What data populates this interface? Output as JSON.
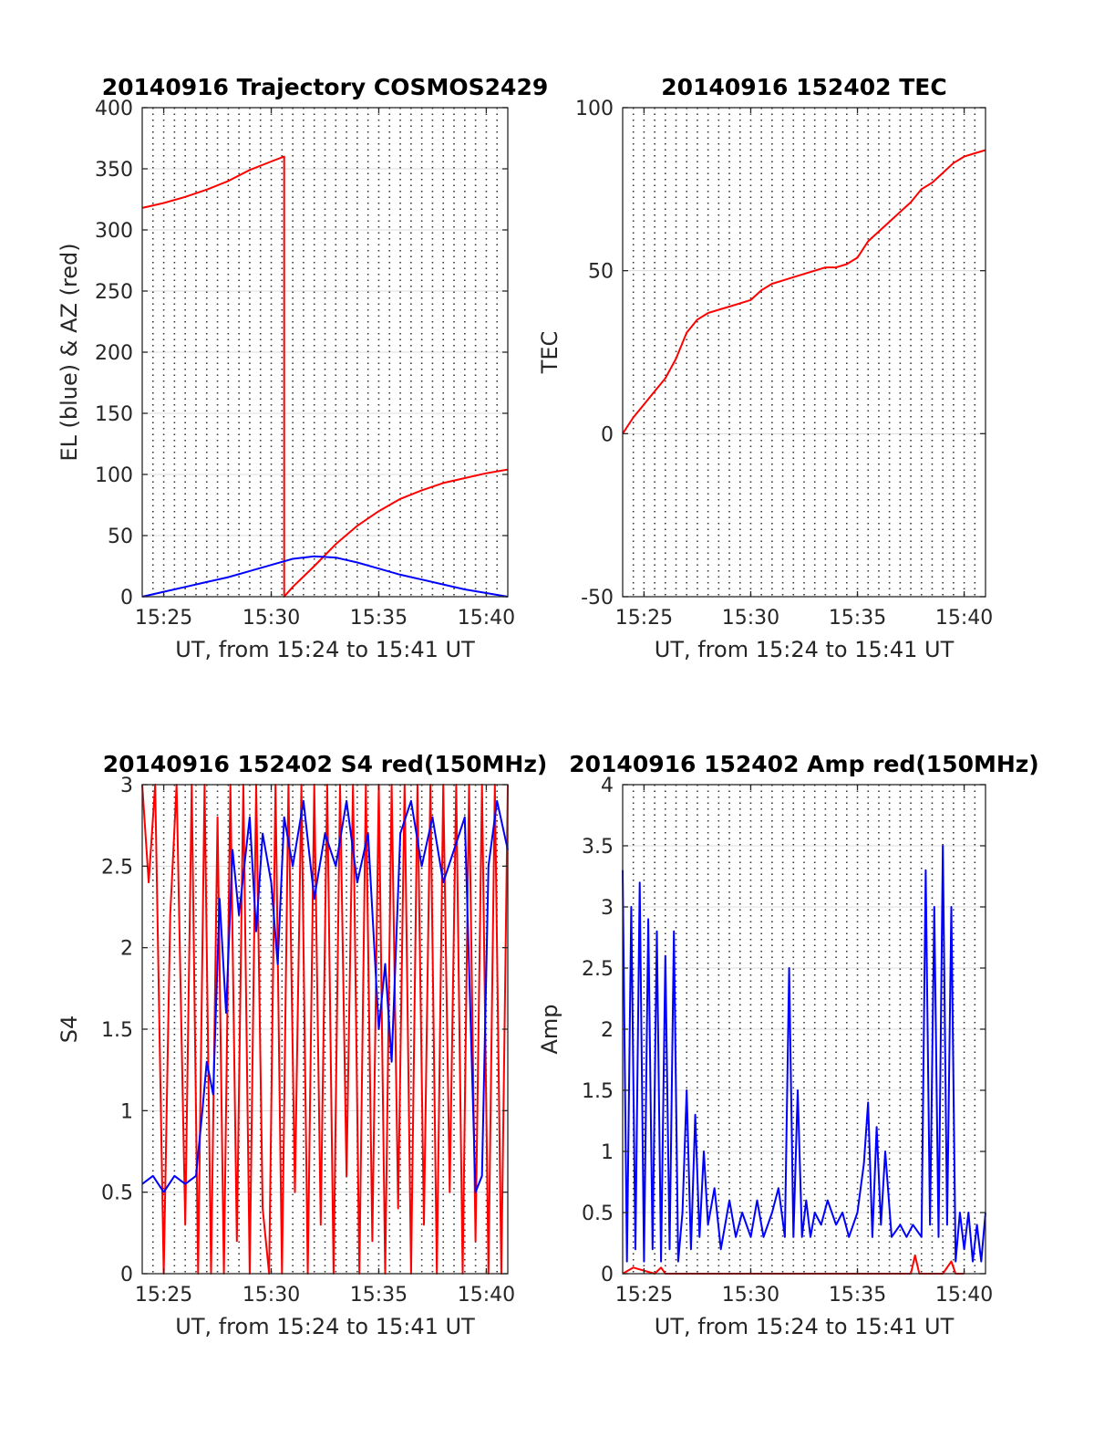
{
  "chart_data": [
    {
      "id": "trajectory",
      "type": "line",
      "title": "20140916 Trajectory COSMOS2429",
      "xlabel": "UT, from 15:24 to 15:41 UT",
      "ylabel": "EL (blue) & AZ (red)",
      "xlim": [
        0,
        17
      ],
      "ylim": [
        0,
        400
      ],
      "xticks": [
        1,
        6,
        11,
        16
      ],
      "xticklabels": [
        "15:25",
        "15:30",
        "15:35",
        "15:40"
      ],
      "yticks": [
        0,
        50,
        100,
        150,
        200,
        250,
        300,
        350,
        400
      ],
      "yticklabels": [
        "0",
        "50",
        "100",
        "150",
        "200",
        "250",
        "300",
        "350",
        "400"
      ],
      "xgrid_minor": true,
      "grid": true,
      "series": [
        {
          "color": "#ff0000",
          "x": [
            0,
            1,
            2,
            3,
            4,
            5,
            6,
            6.6,
            6.601,
            7,
            8,
            9,
            10,
            11,
            12,
            13,
            14,
            15,
            16,
            17
          ],
          "y": [
            318,
            322,
            327,
            333,
            340,
            349,
            356,
            360,
            0,
            8,
            25,
            43,
            58,
            70,
            80,
            87,
            93,
            97,
            101,
            104
          ]
        },
        {
          "color": "#0000ff",
          "x": [
            0,
            1,
            2,
            3,
            4,
            5,
            6,
            7,
            8,
            9,
            10,
            11,
            12,
            13,
            14,
            15,
            16,
            17
          ],
          "y": [
            0,
            4,
            8,
            12,
            16,
            21,
            26,
            31,
            33,
            32,
            28,
            23,
            18,
            14,
            10,
            6,
            3,
            0
          ]
        }
      ]
    },
    {
      "id": "tec",
      "type": "line",
      "title": "20140916 152402 TEC",
      "xlabel": "UT, from 15:24 to 15:41 UT",
      "ylabel": "TEC",
      "xlim": [
        0,
        17
      ],
      "ylim": [
        -50,
        100
      ],
      "xticks": [
        1,
        6,
        11,
        16
      ],
      "xticklabels": [
        "15:25",
        "15:30",
        "15:35",
        "15:40"
      ],
      "yticks": [
        -50,
        0,
        50,
        100
      ],
      "yticklabels": [
        "-50",
        "0",
        "50",
        "100"
      ],
      "xgrid_minor": true,
      "grid": true,
      "series": [
        {
          "color": "#ff0000",
          "x": [
            0,
            0.5,
            1,
            1.5,
            2,
            2.5,
            3,
            3.5,
            4,
            4.5,
            5,
            5.5,
            6,
            6.5,
            7,
            7.5,
            8,
            8.5,
            9,
            9.5,
            10,
            10.5,
            11,
            11.5,
            12,
            12.5,
            13,
            13.5,
            14,
            14.5,
            15,
            15.5,
            16,
            16.5,
            17
          ],
          "y": [
            0,
            5,
            9,
            13,
            17,
            23,
            31,
            35,
            37,
            38,
            39,
            40,
            41,
            44,
            46,
            47,
            48,
            49,
            50,
            51,
            51,
            52,
            54,
            59,
            62,
            65,
            68,
            71,
            75,
            77,
            80,
            83,
            85,
            86,
            87
          ]
        }
      ]
    },
    {
      "id": "s4",
      "type": "line",
      "title": "20140916 152402 S4 red(150MHz)",
      "xlabel": "UT, from 15:24 to 15:41 UT",
      "ylabel": "S4",
      "xlim": [
        0,
        17
      ],
      "ylim": [
        0,
        3
      ],
      "xticks": [
        1,
        6,
        11,
        16
      ],
      "xticklabels": [
        "15:25",
        "15:30",
        "15:35",
        "15:40"
      ],
      "yticks": [
        0,
        0.5,
        1,
        1.5,
        2,
        2.5,
        3
      ],
      "yticklabels": [
        "0",
        "0.5",
        "1",
        "1.5",
        "2",
        "2.5",
        "3"
      ],
      "xgrid_minor": true,
      "grid": true,
      "series": [
        {
          "color": "#ff0000",
          "x": [
            0,
            0.3,
            0.6,
            1,
            1.3,
            1.6,
            2,
            2.3,
            2.6,
            2.9,
            3.2,
            3.5,
            3.8,
            4.1,
            4.4,
            4.7,
            5,
            5.3,
            5.6,
            5.9,
            6.2,
            6.5,
            6.8,
            7.1,
            7.4,
            7.7,
            8,
            8.3,
            8.6,
            8.9,
            9.2,
            9.5,
            9.8,
            10.1,
            10.4,
            10.7,
            11,
            11.3,
            11.6,
            11.9,
            12.2,
            12.5,
            12.8,
            13.1,
            13.4,
            13.7,
            14,
            14.3,
            14.6,
            14.9,
            15.2,
            15.5,
            15.8,
            16.1,
            16.4,
            16.7,
            17
          ],
          "y": [
            3,
            2.4,
            3,
            0,
            2.2,
            3,
            0.3,
            3,
            0,
            3,
            0,
            2.8,
            0,
            3,
            0.2,
            3,
            0,
            3,
            0.4,
            0,
            3,
            0,
            3,
            0.5,
            3,
            0,
            3,
            0.3,
            3,
            0,
            3,
            0.6,
            3,
            0,
            3,
            0.2,
            3,
            0,
            3,
            0.4,
            3,
            0,
            3,
            0.3,
            3,
            0,
            3,
            0.5,
            3,
            0,
            3,
            0.2,
            3,
            0,
            3,
            0,
            3
          ]
        },
        {
          "color": "#0000ff",
          "x": [
            0,
            0.5,
            1,
            1.5,
            2,
            2.5,
            2.8,
            3,
            3.3,
            3.6,
            3.9,
            4.2,
            4.5,
            5,
            5.3,
            5.6,
            6,
            6.3,
            6.6,
            7,
            7.5,
            8,
            8.5,
            9,
            9.5,
            10,
            10.5,
            11,
            11.3,
            11.6,
            12,
            12.5,
            13,
            13.5,
            14,
            14.5,
            15,
            15.5,
            15.8,
            16.1,
            16.5,
            17
          ],
          "y": [
            0.55,
            0.6,
            0.5,
            0.6,
            0.55,
            0.6,
            1.0,
            1.3,
            1.1,
            2.3,
            1.6,
            2.6,
            2.2,
            2.8,
            2.1,
            2.7,
            2.4,
            1.9,
            2.8,
            2.5,
            2.9,
            2.3,
            2.7,
            2.5,
            2.9,
            2.4,
            2.7,
            1.5,
            1.9,
            1.3,
            2.7,
            2.9,
            2.5,
            2.8,
            2.4,
            2.6,
            2.8,
            0.5,
            0.6,
            2.5,
            2.9,
            2.6
          ]
        }
      ]
    },
    {
      "id": "amp",
      "type": "line",
      "title": "20140916 152402 Amp red(150MHz)",
      "xlabel": "UT, from 15:24 to 15:41 UT",
      "ylabel": "Amp",
      "xlim": [
        0,
        17
      ],
      "ylim": [
        0,
        4
      ],
      "xticks": [
        1,
        6,
        11,
        16
      ],
      "xticklabels": [
        "15:25",
        "15:30",
        "15:35",
        "15:40"
      ],
      "yticks": [
        0,
        0.5,
        1,
        1.5,
        2,
        2.5,
        3,
        3.5,
        4
      ],
      "yticklabels": [
        "0",
        "0.5",
        "1",
        "1.5",
        "2",
        "2.5",
        "3",
        "3.5",
        "4"
      ],
      "xgrid_minor": true,
      "grid": true,
      "series": [
        {
          "color": "#0000ff",
          "x": [
            0,
            0.2,
            0.4,
            0.6,
            0.8,
            1,
            1.2,
            1.4,
            1.6,
            1.8,
            2,
            2.2,
            2.4,
            2.6,
            2.8,
            3,
            3.2,
            3.4,
            3.6,
            3.8,
            4,
            4.3,
            4.6,
            5,
            5.3,
            5.6,
            6,
            6.3,
            6.6,
            7,
            7.3,
            7.6,
            7.8,
            8,
            8.2,
            8.4,
            8.6,
            8.8,
            9,
            9.3,
            9.6,
            10,
            10.3,
            10.6,
            11,
            11.3,
            11.5,
            11.7,
            11.9,
            12.1,
            12.3,
            12.6,
            13,
            13.3,
            13.6,
            14,
            14.2,
            14.4,
            14.6,
            14.8,
            15,
            15.2,
            15.4,
            15.6,
            15.8,
            16,
            16.2,
            16.4,
            16.6,
            16.8,
            17
          ],
          "y": [
            3.3,
            0.1,
            3.0,
            0.2,
            3.2,
            0.1,
            2.9,
            0.2,
            2.8,
            0.1,
            2.6,
            0.2,
            2.8,
            0.1,
            0.5,
            1.5,
            0.2,
            1.3,
            0.3,
            1.0,
            0.4,
            0.7,
            0.2,
            0.6,
            0.3,
            0.5,
            0.3,
            0.6,
            0.3,
            0.5,
            0.7,
            0.3,
            2.5,
            0.3,
            1.5,
            0.3,
            0.6,
            0.3,
            0.5,
            0.4,
            0.6,
            0.4,
            0.5,
            0.3,
            0.5,
            0.9,
            1.4,
            0.3,
            1.2,
            0.4,
            1.0,
            0.3,
            0.4,
            0.3,
            0.4,
            0.3,
            3.3,
            0.4,
            3.0,
            0.3,
            3.5,
            0.4,
            3.0,
            0.1,
            0.5,
            0.2,
            0.5,
            0.1,
            0.4,
            0.1,
            0.5
          ]
        },
        {
          "color": "#ff0000",
          "x": [
            0,
            0.5,
            1.5,
            1.8,
            2,
            13.5,
            13.7,
            13.9,
            15,
            15.4,
            15.6,
            16
          ],
          "y": [
            0,
            0.05,
            0,
            0.05,
            0,
            0,
            0.15,
            0,
            0,
            0.1,
            0,
            0
          ]
        }
      ]
    }
  ]
}
